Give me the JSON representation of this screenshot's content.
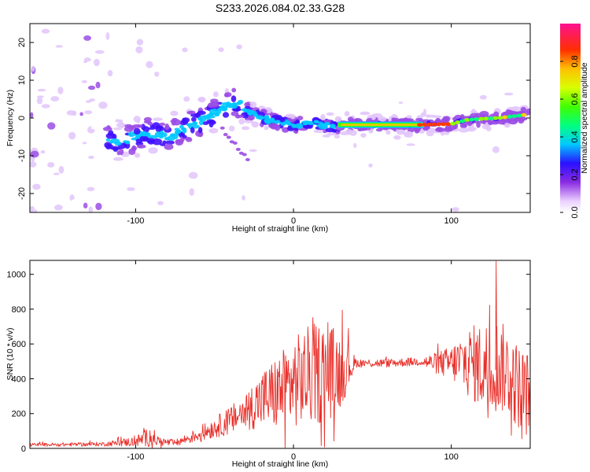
{
  "chart_data": [
    {
      "type": "heatmap",
      "title": "S233.2026.084.02.33.G28",
      "xlabel": "Height of straight line (km)",
      "ylabel": "Frequency (Hz)",
      "xlim": [
        -167,
        150
      ],
      "ylim": [
        -25,
        25
      ],
      "xticks": [
        -100,
        0,
        100
      ],
      "yticks": [
        -20,
        -10,
        0,
        10,
        20
      ],
      "xtick_labels": [
        "-100",
        "0",
        "100"
      ],
      "ytick_labels": [
        "-20",
        "-10",
        "0",
        "10",
        "20"
      ],
      "ridge": {
        "x": [
          -110,
          -100,
          -90,
          -80,
          -70,
          -60,
          -50,
          -40,
          -35,
          -30,
          -20,
          -10,
          0,
          10,
          20,
          28,
          30,
          80,
          100,
          110,
          120,
          130,
          140,
          150
        ],
        "freq": [
          -6,
          -5,
          -4,
          -5,
          -3,
          -1,
          1,
          4,
          4,
          2,
          0,
          -1,
          -2,
          -1,
          -2,
          -2.5,
          -1.8,
          -1.8,
          -1.6,
          -0.5,
          -0.2,
          0,
          0.5,
          1
        ]
      },
      "colorbar": {
        "label": "Normalized spectral amplitude",
        "range": [
          0,
          1
        ],
        "ticks": [
          0,
          0.2,
          0.4,
          0.6,
          0.8
        ],
        "tick_labels": [
          "0.0",
          "0.2",
          "0.4",
          "0.6",
          "0.8"
        ]
      }
    },
    {
      "type": "line",
      "title": "",
      "xlabel": "Height of straight line (km)",
      "ylabel": "SNR (10 * v/v)",
      "xlim": [
        -167,
        150
      ],
      "ylim": [
        0,
        1080
      ],
      "xticks": [
        -100,
        0,
        100
      ],
      "yticks": [
        0,
        200,
        400,
        600,
        800,
        1000
      ],
      "xtick_labels": [
        "-100",
        "0",
        "100"
      ],
      "ytick_labels": [
        "0",
        "200",
        "400",
        "600",
        "800",
        "1000"
      ],
      "series": [
        {
          "name": "SNR",
          "color": "#e8302a",
          "envelope": {
            "x": [
              -167,
              -120,
              -100,
              -90,
              -85,
              -75,
              -60,
              -40,
              -30,
              -20,
              -10,
              0,
              10,
              20,
              30,
              40,
              60,
              80,
              90,
              100,
              110,
              120,
              128,
              135,
              140,
              150
            ],
            "mid": [
              20,
              25,
              40,
              70,
              40,
              30,
              80,
              160,
              220,
              280,
              320,
              380,
              420,
              440,
              450,
              490,
              490,
              500,
              490,
              490,
              500,
              470,
              480,
              450,
              380,
              300
            ],
            "amp": [
              10,
              12,
              30,
              60,
              25,
              20,
              40,
              80,
              110,
              170,
              220,
              260,
              290,
              300,
              220,
              25,
              25,
              25,
              60,
              100,
              200,
              260,
              280,
              250,
              250,
              250
            ]
          }
        }
      ]
    }
  ]
}
